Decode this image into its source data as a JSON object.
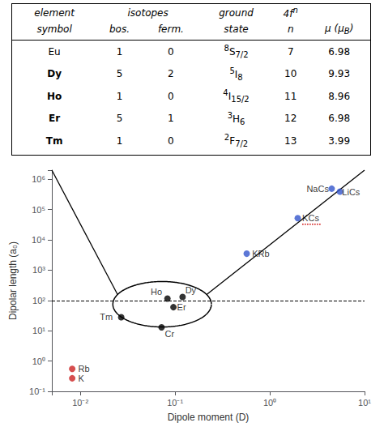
{
  "chart_data": [
    {
      "type": "table",
      "header": [
        [
          {
            "text": "element"
          },
          {
            "text": "isotopes",
            "columns": 2
          },
          {
            "text": "ground"
          },
          {
            "text": [
              {
                "text": "4f"
              },
              {
                "text": "n",
                "sup": true
              }
            ]
          },
          null
        ],
        [
          {
            "text": "symbol"
          },
          {
            "text": "bos."
          },
          {
            "text": "ferm."
          },
          {
            "text": "state"
          },
          {
            "text": "n"
          },
          {
            "text": [
              {
                "text": "μ (μ"
              },
              {
                "text": "B",
                "sub": true
              },
              {
                "text": ")"
              }
            ]
          }
        ]
      ],
      "rows": [
        {
          "symbol": "Eu",
          "bold": false,
          "bos": "1",
          "ferm": "0",
          "state": [
            {
              "text": "8",
              "sup": true
            },
            {
              "text": "S"
            },
            {
              "text": "7/2",
              "sub": true
            }
          ],
          "n": "7",
          "mu": "6.98"
        },
        {
          "symbol": "Dy",
          "bold": true,
          "bos": "5",
          "ferm": "2",
          "state": [
            {
              "text": "5",
              "sup": true
            },
            {
              "text": "I"
            },
            {
              "text": "8",
              "sub": true
            }
          ],
          "n": "10",
          "mu": "9.93"
        },
        {
          "symbol": "Ho",
          "bold": true,
          "bos": "1",
          "ferm": "0",
          "state": [
            {
              "text": "4",
              "sup": true
            },
            {
              "text": "I"
            },
            {
              "text": "15/2",
              "sub": true
            }
          ],
          "n": "11",
          "mu": "8.96"
        },
        {
          "symbol": "Er",
          "bold": true,
          "bos": "5",
          "ferm": "1",
          "state": [
            {
              "text": "3",
              "sup": true
            },
            {
              "text": "H"
            },
            {
              "text": "6",
              "sub": true
            }
          ],
          "n": "12",
          "mu": "6.98"
        },
        {
          "symbol": "Tm",
          "bold": true,
          "bos": "1",
          "ferm": "0",
          "state": [
            {
              "text": "2",
              "sup": true
            },
            {
              "text": "F"
            },
            {
              "text": "7/2",
              "sub": true
            }
          ],
          "n": "13",
          "mu": "3.99"
        }
      ]
    },
    {
      "type": "scatter",
      "log": true,
      "grid": false,
      "xlabel": "Dipole moment (D)",
      "ylabel": "Dipolar length (a₀)",
      "xlim": [
        0.005,
        10
      ],
      "ylim": [
        0.1,
        2000000
      ],
      "xticks": [
        {
          "value": 0.01,
          "label": "10⁻²"
        },
        {
          "value": 0.1,
          "label": "10⁻¹"
        },
        {
          "value": 1,
          "label": "10⁰"
        },
        {
          "value": 10,
          "label": "10¹"
        }
      ],
      "yticks": [
        {
          "value": 0.1,
          "label": "10⁻¹"
        },
        {
          "value": 1,
          "label": "10⁰"
        },
        {
          "value": 10,
          "label": "10¹"
        },
        {
          "value": 100,
          "label": "10²"
        },
        {
          "value": 1000,
          "label": "10³"
        },
        {
          "value": 10000,
          "label": "10⁴"
        },
        {
          "value": 100000,
          "label": "10⁵"
        },
        {
          "value": 1000000,
          "label": "10⁶"
        }
      ],
      "series": [
        {
          "color": "#000000",
          "points": [
            {
              "label": "Tm",
              "x": 0.027,
              "y": 28,
              "label_x": 0.022,
              "label_y": 28
            },
            {
              "label": "Cr",
              "x": 0.072,
              "y": 13,
              "label_x": 0.078,
              "label_y": 11
            },
            {
              "label": "Ho",
              "x": 0.083,
              "y": 115,
              "label_x": 0.073,
              "label_y": 140
            },
            {
              "label": "Er",
              "x": 0.096,
              "y": 60,
              "label_x": 0.105,
              "label_y": 60
            },
            {
              "label": "Dy",
              "x": 0.12,
              "y": 130,
              "label_x": 0.128,
              "label_y": 155
            }
          ]
        },
        {
          "color": "#3355cc",
          "points": [
            {
              "label": "KRb",
              "x": 0.57,
              "y": 3500,
              "label_x": 0.65,
              "label_y": 3500
            },
            {
              "label": "KCs",
              "x": 1.97,
              "y": 52000,
              "label_x": 2.2,
              "label_y": 52000
            },
            {
              "label": "NaCs",
              "x": 4.5,
              "y": 490000,
              "label_x": 4.2,
              "label_y": 490000
            },
            {
              "label": "LiCs",
              "x": 5.5,
              "y": 390000,
              "label_x": 5.8,
              "label_y": 390000
            }
          ]
        },
        {
          "color": "#cc2222",
          "points": [
            {
              "label": "Rb",
              "x": 0.0082,
              "y": 0.55,
              "label_x": 0.0095,
              "label_y": 0.55
            },
            {
              "label": "K",
              "x": 0.0082,
              "y": 0.27,
              "label_x": 0.0095,
              "label_y": 0.27
            }
          ]
        }
      ],
      "reference_lines": [
        {
          "y": 100,
          "line_style": "dashed",
          "color": "#000000"
        }
      ],
      "ellipse": {
        "cx_log": -1.137,
        "cy_log": 1.875,
        "rx_log": 0.52,
        "ry_log": 0.75,
        "color": "#000000"
      },
      "zoom_lines": [
        {
          "theta": 2.7,
          "x": 0.005,
          "y": 2000000,
          "color": "#000000"
        },
        {
          "theta": 0.44,
          "x": 10,
          "y": 2000000,
          "color": "#000000"
        }
      ],
      "underline": {
        "x1": 2.2,
        "x2": 3.5,
        "y": 33000,
        "color": "#cc0000",
        "line_style": "dotted"
      }
    }
  ]
}
